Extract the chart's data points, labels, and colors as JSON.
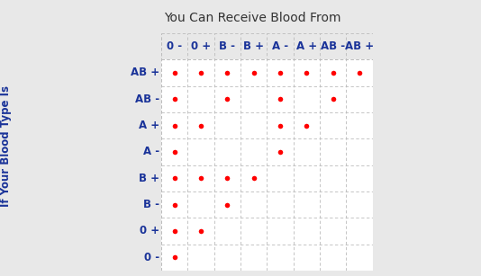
{
  "title": "You Can Receive Blood From",
  "col_labels": [
    "0 -",
    "0 +",
    "B -",
    "B +",
    "A -",
    "A +",
    "AB -",
    "AB +"
  ],
  "row_labels": [
    "AB +",
    "AB -",
    "A +",
    "A -",
    "B +",
    "B -",
    "0 +",
    "0 -"
  ],
  "ylabel": "If Your Blood Type Is",
  "dots": [
    [
      1,
      1,
      1,
      1,
      1,
      1,
      1,
      1
    ],
    [
      1,
      0,
      1,
      0,
      1,
      0,
      1,
      0
    ],
    [
      1,
      1,
      0,
      0,
      1,
      1,
      0,
      0
    ],
    [
      1,
      0,
      0,
      0,
      1,
      0,
      0,
      0
    ],
    [
      1,
      1,
      1,
      1,
      0,
      0,
      0,
      0
    ],
    [
      1,
      0,
      1,
      0,
      0,
      0,
      0,
      0
    ],
    [
      1,
      1,
      0,
      0,
      0,
      0,
      0,
      0
    ],
    [
      1,
      0,
      0,
      0,
      0,
      0,
      0,
      0
    ]
  ],
  "dot_color": "#ff0000",
  "title_color": "#333333",
  "label_color": "#1a3399",
  "ylabel_color": "#1a3399",
  "grid_color": "#bbbbbb",
  "bg_color": "#e8e8e8",
  "cell_bg": "#ffffff",
  "header_bg": "#e8e8e8",
  "title_fontsize": 10,
  "label_fontsize": 8.5,
  "ylabel_fontsize": 8.5,
  "dot_size": 4.0
}
